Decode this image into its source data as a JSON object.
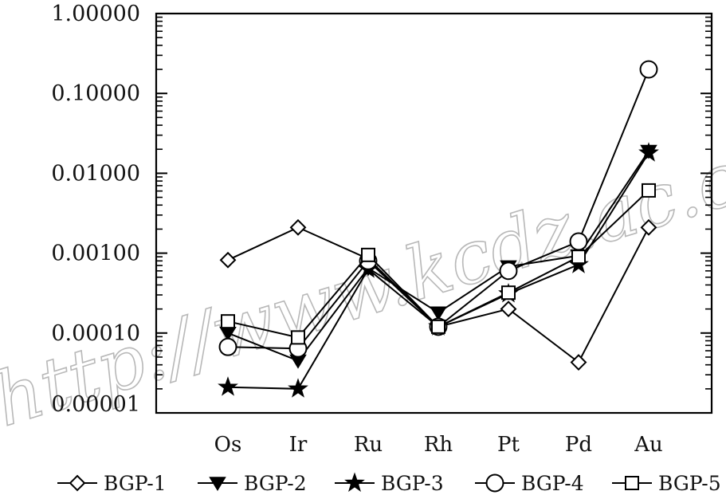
{
  "watermark": "http://www.kcdz.ac.cn",
  "chart_data": {
    "type": "line",
    "title": "",
    "xlabel": "",
    "ylabel": "",
    "yscale": "log",
    "ylim": [
      1e-05,
      1.0
    ],
    "yticks": [
      "1.00000",
      "0.10000",
      "0.01000",
      "0.00100",
      "0.00010",
      "0.00001"
    ],
    "categories": [
      "Os",
      "Ir",
      "Ru",
      "Rh",
      "Pt",
      "Pd",
      "Au"
    ],
    "legend_position": "bottom",
    "grid": false,
    "series": [
      {
        "name": "BGP-1",
        "marker": "diamond",
        "filled": false,
        "values": [
          0.00082,
          0.0021,
          0.00085,
          0.00012,
          0.0002,
          4.3e-05,
          0.0021
        ]
      },
      {
        "name": "BGP-2",
        "marker": "triangle-down",
        "filled": true,
        "values": [
          0.0001,
          4.5e-05,
          0.00065,
          0.00018,
          0.00068,
          0.00093,
          0.019
        ]
      },
      {
        "name": "BGP-3",
        "marker": "star",
        "filled": true,
        "values": [
          2.1e-05,
          2e-05,
          0.00063,
          0.00012,
          0.00031,
          0.00072,
          0.018
        ]
      },
      {
        "name": "BGP-4",
        "marker": "circle",
        "filled": false,
        "values": [
          6.7e-05,
          6.4e-05,
          0.0008,
          0.00012,
          0.0006,
          0.0014,
          0.2
        ]
      },
      {
        "name": "BGP-5",
        "marker": "square",
        "filled": false,
        "values": [
          0.00014,
          8.8e-05,
          0.00095,
          0.00012,
          0.00032,
          0.0009,
          0.0061
        ]
      }
    ]
  }
}
